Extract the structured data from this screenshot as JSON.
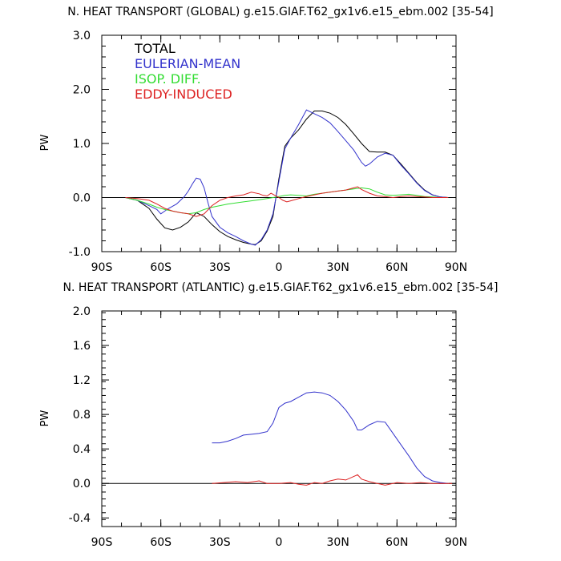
{
  "colors": {
    "total": "#000000",
    "eulerian": "#3333cc",
    "isop": "#33dd33",
    "eddy": "#dd2222",
    "zero_line": "#000000"
  },
  "chart_data": [
    {
      "type": "line",
      "title": "N. HEAT TRANSPORT (GLOBAL) g.e15.GIAF.T62_gx1v6.e15_ebm.002 [35-54]",
      "xlabel": "",
      "ylabel": "PW",
      "xlim": [
        -90,
        90
      ],
      "ylim": [
        -1.0,
        3.0
      ],
      "x_ticks": [
        -90,
        -60,
        -30,
        0,
        30,
        60,
        90
      ],
      "x_tick_labels": [
        "90S",
        "60S",
        "30S",
        "0",
        "30N",
        "60N",
        "90N"
      ],
      "y_ticks": [
        -1.0,
        0.0,
        1.0,
        2.0,
        3.0
      ],
      "y_tick_labels": [
        "-1.0",
        "0.0",
        "1.0",
        "2.0",
        "3.0"
      ],
      "grid": false,
      "legend": "top-left",
      "series": [
        {
          "name": "TOTAL",
          "color_key": "total",
          "x": [
            -78,
            -72,
            -66,
            -62,
            -58,
            -54,
            -50,
            -46,
            -42,
            -38,
            -34,
            -30,
            -26,
            -22,
            -18,
            -14,
            -12,
            -9,
            -6,
            -3,
            0,
            3,
            6,
            10,
            14,
            18,
            22,
            26,
            30,
            34,
            38,
            42,
            46,
            50,
            54,
            58,
            62,
            66,
            70,
            74,
            78,
            82,
            86
          ],
          "y": [
            0.0,
            -0.05,
            -0.2,
            -0.4,
            -0.56,
            -0.6,
            -0.55,
            -0.45,
            -0.28,
            -0.35,
            -0.5,
            -0.63,
            -0.72,
            -0.78,
            -0.83,
            -0.86,
            -0.87,
            -0.8,
            -0.62,
            -0.35,
            0.35,
            0.95,
            1.1,
            1.25,
            1.45,
            1.6,
            1.6,
            1.56,
            1.48,
            1.35,
            1.18,
            1.0,
            0.85,
            0.84,
            0.84,
            0.78,
            0.62,
            0.45,
            0.28,
            0.14,
            0.05,
            0.01,
            0.0
          ]
        },
        {
          "name": "EULERIAN-MEAN",
          "color_key": "eulerian",
          "x": [
            -78,
            -72,
            -66,
            -62,
            -60,
            -58,
            -56,
            -54,
            -52,
            -50,
            -48,
            -46,
            -44,
            -42,
            -40,
            -38,
            -36,
            -34,
            -30,
            -26,
            -22,
            -18,
            -14,
            -12,
            -9,
            -6,
            -3,
            0,
            3,
            6,
            10,
            14,
            18,
            22,
            26,
            30,
            34,
            38,
            42,
            44,
            46,
            50,
            54,
            58,
            62,
            66,
            70,
            74,
            78,
            82,
            86
          ],
          "y": [
            0.0,
            -0.05,
            -0.15,
            -0.22,
            -0.3,
            -0.25,
            -0.2,
            -0.16,
            -0.12,
            -0.05,
            0.02,
            0.12,
            0.25,
            0.36,
            0.34,
            0.18,
            -0.1,
            -0.35,
            -0.55,
            -0.65,
            -0.72,
            -0.8,
            -0.86,
            -0.88,
            -0.78,
            -0.6,
            -0.3,
            0.3,
            0.9,
            1.1,
            1.35,
            1.62,
            1.55,
            1.48,
            1.38,
            1.22,
            1.05,
            0.88,
            0.65,
            0.58,
            0.62,
            0.75,
            0.82,
            0.78,
            0.6,
            0.44,
            0.27,
            0.13,
            0.05,
            0.01,
            0.0
          ]
        },
        {
          "name": "ISOP. DIFF.",
          "color_key": "isop",
          "x": [
            -78,
            -72,
            -66,
            -62,
            -58,
            -54,
            -50,
            -46,
            -42,
            -38,
            -34,
            -30,
            -26,
            -22,
            -18,
            -14,
            -10,
            -6,
            -3,
            0,
            3,
            6,
            10,
            14,
            18,
            22,
            26,
            30,
            34,
            38,
            42,
            46,
            50,
            54,
            58,
            62,
            66,
            70,
            74,
            78,
            82,
            86
          ],
          "y": [
            0.0,
            -0.05,
            -0.12,
            -0.18,
            -0.22,
            -0.25,
            -0.28,
            -0.3,
            -0.28,
            -0.22,
            -0.18,
            -0.15,
            -0.12,
            -0.1,
            -0.08,
            -0.06,
            -0.04,
            -0.02,
            0.0,
            0.02,
            0.04,
            0.05,
            0.04,
            0.03,
            0.06,
            0.08,
            0.1,
            0.12,
            0.14,
            0.16,
            0.18,
            0.16,
            0.1,
            0.05,
            0.04,
            0.05,
            0.06,
            0.04,
            0.02,
            0.01,
            0.0,
            0.0
          ]
        },
        {
          "name": "EDDY-INDUCED",
          "color_key": "eddy",
          "x": [
            -78,
            -72,
            -66,
            -62,
            -58,
            -54,
            -50,
            -46,
            -42,
            -38,
            -34,
            -30,
            -26,
            -22,
            -18,
            -14,
            -10,
            -8,
            -6,
            -4,
            -2,
            0,
            2,
            4,
            6,
            10,
            14,
            18,
            22,
            26,
            30,
            34,
            38,
            40,
            42,
            46,
            50,
            54,
            58,
            62,
            66,
            70,
            74,
            78,
            82,
            86
          ],
          "y": [
            0.0,
            -0.02,
            -0.05,
            -0.12,
            -0.2,
            -0.25,
            -0.28,
            -0.3,
            -0.35,
            -0.3,
            -0.15,
            -0.05,
            0.0,
            0.03,
            0.05,
            0.1,
            0.07,
            0.04,
            0.03,
            0.08,
            0.04,
            0.0,
            -0.05,
            -0.08,
            -0.06,
            -0.02,
            0.02,
            0.05,
            0.08,
            0.1,
            0.12,
            0.14,
            0.18,
            0.2,
            0.15,
            0.08,
            0.03,
            0.02,
            0.0,
            0.02,
            0.03,
            0.02,
            0.01,
            0.0,
            0.0,
            0.0
          ]
        }
      ]
    },
    {
      "type": "line",
      "title": "N. HEAT TRANSPORT (ATLANTIC) g.e15.GIAF.T62_gx1v6.e15_ebm.002 [35-54]",
      "xlabel": "",
      "ylabel": "PW",
      "xlim": [
        -90,
        90
      ],
      "ylim": [
        -0.5,
        2.0
      ],
      "x_ticks": [
        -90,
        -60,
        -30,
        0,
        30,
        60,
        90
      ],
      "x_tick_labels": [
        "90S",
        "60S",
        "30S",
        "0",
        "30N",
        "60N",
        "90N"
      ],
      "y_ticks": [
        -0.4,
        0.0,
        0.4,
        0.8,
        1.2,
        1.6,
        2.0
      ],
      "y_tick_labels": [
        "-0.4",
        "0.0",
        "0.4",
        "0.8",
        "1.2",
        "1.6",
        "2.0"
      ],
      "grid": false,
      "legend": "none",
      "series": [
        {
          "name": "EULERIAN-MEAN",
          "color_key": "eulerian",
          "x": [
            -34,
            -30,
            -26,
            -22,
            -18,
            -14,
            -10,
            -6,
            -3,
            0,
            3,
            6,
            10,
            14,
            18,
            22,
            26,
            30,
            34,
            38,
            40,
            42,
            44,
            46,
            50,
            54,
            58,
            62,
            66,
            70,
            74,
            78,
            82,
            86
          ],
          "y": [
            0.47,
            0.47,
            0.49,
            0.52,
            0.56,
            0.57,
            0.58,
            0.6,
            0.7,
            0.88,
            0.93,
            0.95,
            1.0,
            1.05,
            1.06,
            1.05,
            1.02,
            0.95,
            0.85,
            0.72,
            0.62,
            0.62,
            0.65,
            0.68,
            0.72,
            0.71,
            0.58,
            0.45,
            0.32,
            0.18,
            0.08,
            0.03,
            0.01,
            0.0
          ]
        },
        {
          "name": "EDDY-INDUCED",
          "color_key": "eddy",
          "x": [
            -34,
            -28,
            -22,
            -16,
            -10,
            -6,
            0,
            6,
            10,
            14,
            18,
            22,
            26,
            30,
            34,
            38,
            40,
            42,
            46,
            50,
            54,
            60,
            66,
            72,
            78,
            84,
            88
          ],
          "y": [
            0.0,
            0.01,
            0.02,
            0.01,
            0.03,
            0.0,
            0.0,
            0.01,
            -0.01,
            -0.02,
            0.01,
            0.0,
            0.03,
            0.05,
            0.04,
            0.08,
            0.1,
            0.05,
            0.02,
            0.0,
            -0.02,
            0.01,
            0.0,
            0.01,
            0.0,
            0.0,
            0.0
          ]
        }
      ]
    }
  ]
}
